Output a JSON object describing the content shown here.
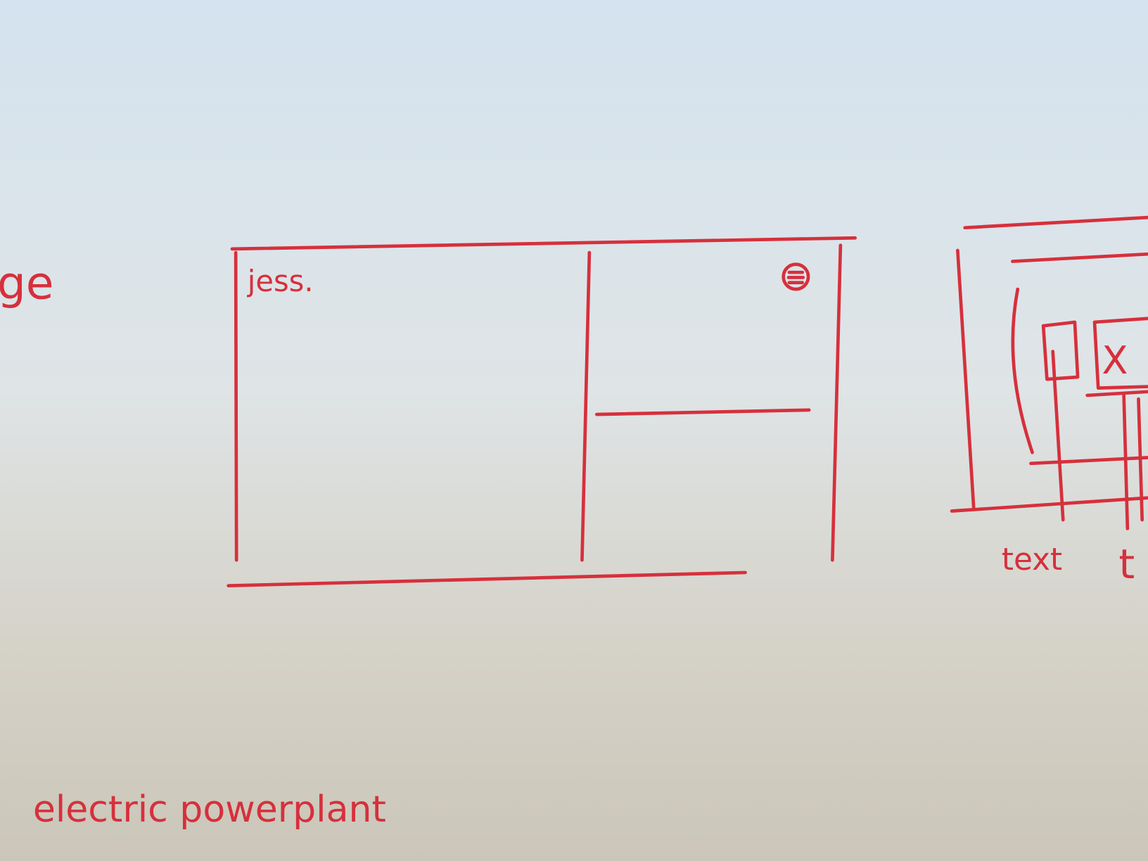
{
  "sketch": {
    "left_margin_text": "ge",
    "frame": {
      "logo": "jess."
    },
    "right_sketch": {
      "box_mark": "X",
      "caption_1": "text",
      "caption_2": "t"
    },
    "footer_note": "electric powerplant"
  }
}
